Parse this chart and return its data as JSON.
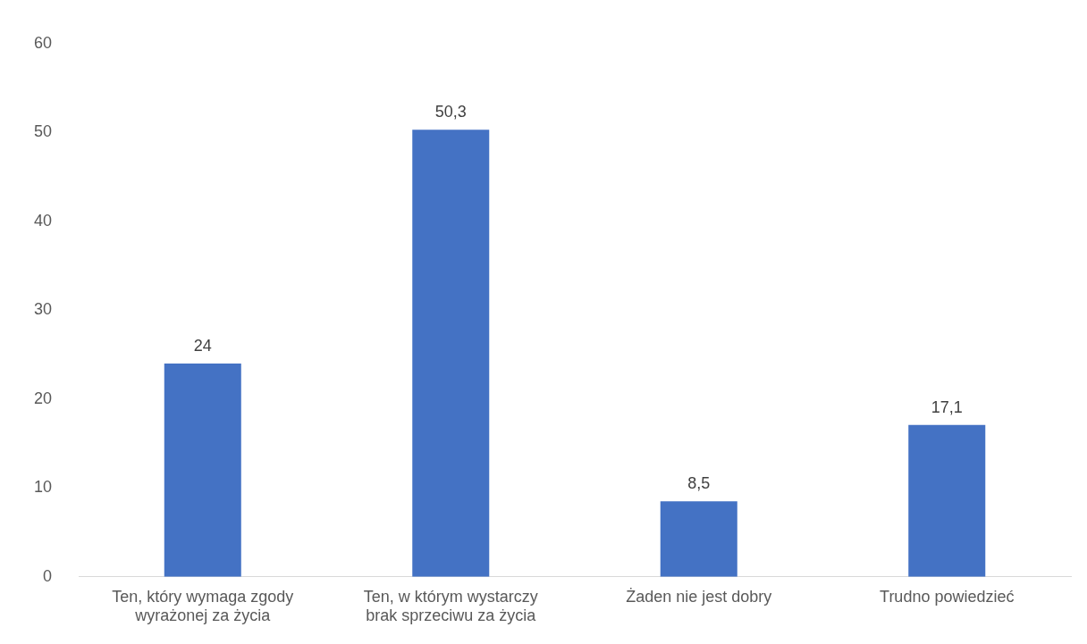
{
  "chart_data": {
    "type": "bar",
    "categories": [
      "Ten, który wymaga zgody wyrażonej za życia",
      "Ten, w którym wystarczy brak sprzeciwu za życia",
      "Żaden nie jest dobry",
      "Trudno powiedzieć"
    ],
    "values": [
      24,
      50.3,
      8.5,
      17.1
    ],
    "value_labels": [
      "24",
      "50,3",
      "8,5",
      "17,1"
    ],
    "color": "#4472c4",
    "ylim": [
      0,
      60
    ],
    "yticks": [
      0,
      10,
      20,
      30,
      40,
      50,
      60
    ],
    "grid": false,
    "legend": false
  }
}
